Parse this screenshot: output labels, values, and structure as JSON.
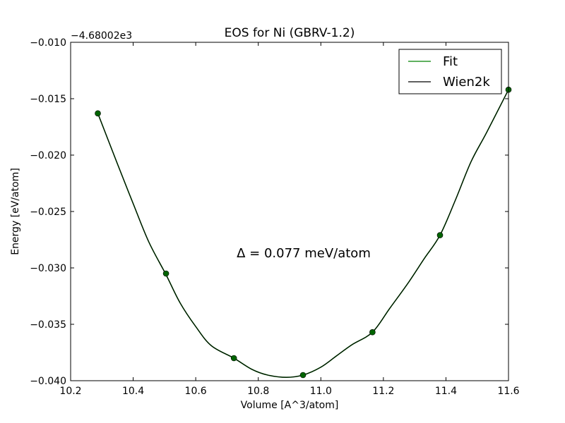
{
  "chart_data": {
    "type": "line",
    "title": "EOS for Ni (GBRV-1.2)",
    "xlabel": "Volume [A^3/atom]",
    "ylabel": "Energy [eV/atom]",
    "y_offset_label": "−4.68002e3",
    "xlim": [
      10.2,
      11.6
    ],
    "ylim": [
      -0.04,
      -0.01
    ],
    "x_ticks": [
      10.2,
      10.4,
      10.6,
      10.8,
      11.0,
      11.2,
      11.4,
      11.6
    ],
    "x_tick_labels": [
      "10.2",
      "10.4",
      "10.6",
      "10.8",
      "11.0",
      "11.2",
      "11.4",
      "11.6"
    ],
    "y_ticks": [
      -0.04,
      -0.035,
      -0.03,
      -0.025,
      -0.02,
      -0.015,
      -0.01
    ],
    "y_tick_labels": [
      "−0.040",
      "−0.035",
      "−0.030",
      "−0.025",
      "−0.020",
      "−0.015",
      "−0.010"
    ],
    "grid": false,
    "legend_position": "top-right",
    "annotation": "Δ = 0.077 meV/atom",
    "series": [
      {
        "name": "Fit",
        "kind": "line",
        "color": "#008000",
        "x": [
          10.287,
          10.35,
          10.4,
          10.45,
          10.505,
          10.55,
          10.6,
          10.65,
          10.722,
          10.78,
          10.83,
          10.89,
          10.943,
          11.0,
          11.05,
          11.1,
          11.165,
          11.22,
          11.28,
          11.33,
          11.381,
          11.43,
          11.48,
          11.53,
          11.6
        ],
        "y": [
          -0.0163,
          -0.0208,
          -0.0243,
          -0.0277,
          -0.0306,
          -0.0331,
          -0.0352,
          -0.0369,
          -0.038,
          -0.039,
          -0.0395,
          -0.0397,
          -0.0395,
          -0.0388,
          -0.0378,
          -0.0368,
          -0.0357,
          -0.0336,
          -0.0313,
          -0.0292,
          -0.0271,
          -0.024,
          -0.0206,
          -0.018,
          -0.0142
        ]
      },
      {
        "name": "Wien2k",
        "kind": "line",
        "color": "#000000",
        "x": [
          10.287,
          10.35,
          10.4,
          10.45,
          10.505,
          10.55,
          10.6,
          10.65,
          10.722,
          10.78,
          10.83,
          10.89,
          10.943,
          11.0,
          11.05,
          11.1,
          11.165,
          11.22,
          11.28,
          11.33,
          11.381,
          11.43,
          11.48,
          11.53,
          11.6
        ],
        "y": [
          -0.0163,
          -0.0208,
          -0.0243,
          -0.0277,
          -0.0306,
          -0.0331,
          -0.0352,
          -0.0369,
          -0.038,
          -0.039,
          -0.0395,
          -0.0397,
          -0.0395,
          -0.0388,
          -0.0378,
          -0.0368,
          -0.0357,
          -0.0336,
          -0.0313,
          -0.0292,
          -0.0271,
          -0.024,
          -0.0206,
          -0.018,
          -0.0142
        ]
      }
    ],
    "points": {
      "color": "#006400",
      "x": [
        10.287,
        10.505,
        10.722,
        10.943,
        11.165,
        11.381,
        11.6
      ],
      "y": [
        -0.0163,
        -0.0305,
        -0.038,
        -0.0395,
        -0.0357,
        -0.0271,
        -0.0142
      ]
    }
  }
}
